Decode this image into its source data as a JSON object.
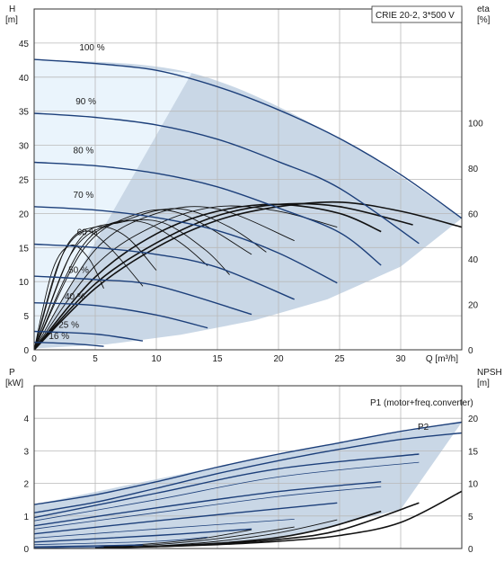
{
  "chart_data": [
    {
      "type": "line",
      "panel": "head",
      "title": "CRIE 20-2, 3*500 V",
      "ylabel": "H",
      "ylabel_unit": "[m]",
      "y2label": "eta",
      "y2label_unit": "[%]",
      "xlabel": "Q [m³/h]",
      "xlim": [
        0,
        35
      ],
      "ylim": [
        0,
        50
      ],
      "y2lim": [
        0,
        150
      ],
      "xticks": [
        "0",
        "5",
        "10",
        "15",
        "20",
        "25",
        "30"
      ],
      "yticks": [
        "0",
        "5",
        "10",
        "15",
        "20",
        "25",
        "30",
        "35",
        "40",
        "45"
      ],
      "y2ticks": [
        "0",
        "20",
        "40",
        "60",
        "80",
        "100"
      ],
      "grid": true,
      "operating_area": {
        "color": "#c9d7e6",
        "light_color": "#eaf4fc",
        "upper_boundary": [
          [
            0,
            42.6
          ],
          [
            12.9,
            40.6
          ],
          [
            25.0,
            31.0
          ],
          [
            35.0,
            19.3
          ]
        ],
        "lower_boundary": [
          [
            0,
            0.2
          ],
          [
            6,
            0.8
          ],
          [
            12,
            2.2
          ],
          [
            18,
            4.3
          ],
          [
            24,
            7.4
          ],
          [
            30,
            12.2
          ],
          [
            35,
            19.3
          ]
        ],
        "fade_limit": [
          [
            0,
            0
          ],
          [
            12.9,
            40.6
          ]
        ]
      },
      "series": [
        {
          "name": "100 %",
          "label": "100 %",
          "color": "#1c3f7a",
          "x": [
            0,
            5,
            10,
            15,
            20,
            25,
            30,
            35
          ],
          "y": [
            42.6,
            42.0,
            41.0,
            38.6,
            35.2,
            31.0,
            25.7,
            19.3
          ]
        },
        {
          "name": "90 %",
          "label": "90 %",
          "color": "#1c3f7a",
          "x": [
            0,
            5,
            10,
            15,
            20,
            25,
            31.5
          ],
          "y": [
            34.7,
            34.1,
            33.0,
            30.9,
            27.6,
            23.7,
            15.6
          ]
        },
        {
          "name": "80 %",
          "label": "80 %",
          "color": "#1c3f7a",
          "x": [
            0,
            5,
            10,
            15,
            20,
            25,
            28.4
          ],
          "y": [
            27.5,
            27.0,
            25.9,
            23.9,
            20.8,
            17.2,
            12.4
          ]
        },
        {
          "name": "70 %",
          "label": "70 %",
          "color": "#1c3f7a",
          "x": [
            0,
            5,
            10,
            15,
            20,
            24.8
          ],
          "y": [
            21.0,
            20.5,
            19.4,
            17.5,
            14.2,
            9.8
          ]
        },
        {
          "name": "60 %",
          "label": "60 %",
          "color": "#1c3f7a",
          "x": [
            0,
            5,
            10,
            15,
            21.3
          ],
          "y": [
            15.5,
            15.0,
            14.0,
            12.1,
            7.4
          ]
        },
        {
          "name": "50 %",
          "label": "50 %",
          "color": "#1c3f7a",
          "x": [
            0,
            5,
            10,
            17.8
          ],
          "y": [
            10.8,
            10.3,
            9.4,
            5.2
          ]
        },
        {
          "name": "40 %",
          "label": "40 %",
          "color": "#1c3f7a",
          "x": [
            0,
            5,
            10,
            14.2
          ],
          "y": [
            6.9,
            6.5,
            5.1,
            3.2
          ]
        },
        {
          "name": "25 %",
          "label": "25 %",
          "color": "#1c3f7a",
          "x": [
            0,
            5,
            8.9
          ],
          "y": [
            2.7,
            2.3,
            1.3
          ]
        },
        {
          "name": "16 %",
          "label": "16 %",
          "color": "#1c3f7a",
          "x": [
            0,
            3,
            5.7
          ],
          "y": [
            1.1,
            0.9,
            0.5
          ]
        }
      ],
      "efficiency_curves": [
        {
          "scale": "eta",
          "color": "#111111",
          "x": [
            0,
            5,
            10,
            15,
            20,
            25,
            30,
            35
          ],
          "y": [
            0,
            27,
            45,
            57,
            63,
            65,
            61,
            54
          ]
        },
        {
          "scale": "eta",
          "color": "#111111",
          "x": [
            0,
            5,
            10,
            15,
            20,
            25,
            31
          ],
          "y": [
            0,
            29,
            47,
            59,
            64,
            63,
            55
          ]
        },
        {
          "scale": "eta",
          "color": "#111111",
          "x": [
            0,
            5,
            10,
            15,
            20,
            25,
            28.4
          ],
          "y": [
            0,
            32,
            51,
            61,
            64,
            60,
            52
          ]
        },
        {
          "scale": "eta",
          "color": "#111111",
          "x": [
            0,
            5,
            10,
            15,
            20,
            24.8
          ],
          "y": [
            0,
            37,
            55,
            63,
            61,
            54
          ]
        },
        {
          "scale": "eta",
          "color": "#111111",
          "x": [
            0,
            5,
            10,
            15,
            21.3
          ],
          "y": [
            0,
            44,
            60,
            62,
            48
          ]
        },
        {
          "scale": "eta",
          "color": "#111111",
          "x": [
            0,
            4,
            8,
            12,
            17.8
          ],
          "y": [
            0,
            44,
            59,
            60,
            42
          ]
        },
        {
          "scale": "eta",
          "color": "#111111",
          "x": [
            0,
            3,
            6,
            9,
            12,
            14.2
          ],
          "y": [
            0,
            42,
            55,
            56,
            47,
            37
          ]
        },
        {
          "scale": "eta",
          "color": "#111111",
          "x": [
            0,
            2,
            4,
            6,
            8.9
          ],
          "y": [
            0,
            38,
            52,
            46,
            28
          ]
        },
        {
          "scale": "eta",
          "color": "#111111",
          "x": [
            0,
            1.5,
            3,
            4.5,
            5.7
          ],
          "y": [
            0,
            35,
            46,
            40,
            27
          ]
        },
        {
          "scale": "eta",
          "color": "#111111",
          "x": [
            0,
            2.5,
            5,
            7.5,
            10
          ],
          "y": [
            0,
            44,
            54,
            50,
            35
          ]
        },
        {
          "scale": "eta",
          "color": "#111111",
          "x": [
            0,
            3.5,
            7,
            10.5,
            14,
            16
          ],
          "y": [
            0,
            47,
            56,
            56,
            44,
            33
          ]
        },
        {
          "scale": "eta",
          "color": "#111111",
          "x": [
            0,
            4,
            8,
            12,
            16,
            19
          ],
          "y": [
            0,
            46,
            58,
            62,
            54,
            43
          ]
        }
      ]
    },
    {
      "type": "line",
      "panel": "power",
      "ylabel": "P",
      "ylabel_unit": "[kW]",
      "y2label": "NPSH",
      "y2label_unit": "[m]",
      "xlim": [
        0,
        35
      ],
      "ylim": [
        0,
        5
      ],
      "y2lim": [
        0,
        25
      ],
      "yticks": [
        "0",
        "1",
        "2",
        "3",
        "4"
      ],
      "y2ticks": [
        "0",
        "5",
        "10",
        "15",
        "20"
      ],
      "grid": true,
      "operating_area": {
        "color": "#c9d7e6",
        "light_color": "#eaf4fc",
        "upper_boundary": [
          [
            0,
            1.35
          ],
          [
            12.9,
            2.35
          ],
          [
            25.0,
            3.25
          ],
          [
            35.0,
            3.88
          ]
        ],
        "lower_boundary": [
          [
            0,
            0.01
          ],
          [
            10,
            0.05
          ],
          [
            20,
            0.3
          ],
          [
            30,
            1.2
          ],
          [
            35,
            3.88
          ]
        ]
      },
      "annotations": [
        "P1 (motor+freq.converter)",
        "P2"
      ],
      "series": [
        {
          "name": "P1 (motor+freq.converter)",
          "color": "#1c3f7a",
          "x": [
            0,
            5,
            10,
            15,
            20,
            25,
            30,
            35
          ],
          "y": [
            1.35,
            1.65,
            2.05,
            2.5,
            2.9,
            3.25,
            3.6,
            3.88
          ]
        },
        {
          "name": "P2",
          "color": "#1c3f7a",
          "x": [
            0,
            5,
            10,
            15,
            20,
            25,
            30,
            35
          ],
          "y": [
            1.1,
            1.42,
            1.85,
            2.3,
            2.7,
            3.05,
            3.35,
            3.55
          ]
        }
      ],
      "power_curves": [
        {
          "color": "#1c3f7a",
          "x": [
            0,
            10,
            20,
            31.5
          ],
          "y": [
            0.95,
            1.7,
            2.45,
            2.9
          ]
        },
        {
          "color": "#1c3f7a",
          "x": [
            0,
            10,
            20,
            31.5
          ],
          "y": [
            0.85,
            1.5,
            2.2,
            2.65
          ]
        },
        {
          "color": "#1c3f7a",
          "x": [
            0,
            10,
            20,
            28.4
          ],
          "y": [
            0.7,
            1.25,
            1.75,
            2.05
          ]
        },
        {
          "color": "#1c3f7a",
          "x": [
            0,
            10,
            20,
            28.4
          ],
          "y": [
            0.6,
            1.1,
            1.6,
            1.9
          ]
        },
        {
          "color": "#1c3f7a",
          "x": [
            0,
            10,
            24.8
          ],
          "y": [
            0.45,
            0.85,
            1.4
          ]
        },
        {
          "color": "#1c3f7a",
          "x": [
            0,
            10,
            21.3
          ],
          "y": [
            0.32,
            0.6,
            0.9
          ]
        },
        {
          "color": "#1c3f7a",
          "x": [
            0,
            10,
            17.8
          ],
          "y": [
            0.2,
            0.4,
            0.6
          ]
        },
        {
          "color": "#1c3f7a",
          "x": [
            0,
            10,
            14.2
          ],
          "y": [
            0.12,
            0.22,
            0.35
          ]
        },
        {
          "color": "#1c3f7a",
          "x": [
            0,
            5,
            8.9
          ],
          "y": [
            0.05,
            0.08,
            0.11
          ]
        },
        {
          "color": "#1c3f7a",
          "x": [
            0,
            3,
            5.7
          ],
          "y": [
            0.02,
            0.03,
            0.04
          ]
        }
      ],
      "npsh_curves": [
        {
          "scale": "npsh",
          "color": "#111111",
          "x": [
            5,
            10,
            15,
            20,
            25,
            30,
            35
          ],
          "y": [
            0.1,
            0.3,
            0.6,
            1.1,
            2.0,
            4.0,
            8.8
          ]
        },
        {
          "scale": "npsh",
          "color": "#111111",
          "x": [
            5,
            10,
            15,
            20,
            25,
            31.5
          ],
          "y": [
            0.1,
            0.3,
            0.7,
            1.4,
            2.8,
            7.0
          ]
        },
        {
          "scale": "npsh",
          "color": "#111111",
          "x": [
            5,
            10,
            15,
            20,
            24,
            28.4
          ],
          "y": [
            0.1,
            0.35,
            0.8,
            1.7,
            3.2,
            5.7
          ]
        },
        {
          "scale": "npsh",
          "color": "#111111",
          "x": [
            5,
            10,
            15,
            20,
            24.8
          ],
          "y": [
            0.1,
            0.4,
            1.1,
            2.4,
            4.4
          ]
        },
        {
          "scale": "npsh",
          "color": "#111111",
          "x": [
            5,
            10,
            15,
            21.3
          ],
          "y": [
            0.2,
            0.6,
            1.5,
            3.3
          ]
        },
        {
          "scale": "npsh",
          "color": "#111111",
          "x": [
            5,
            10,
            14,
            17.8
          ],
          "y": [
            0.2,
            0.8,
            1.6,
            2.9
          ]
        }
      ]
    }
  ]
}
